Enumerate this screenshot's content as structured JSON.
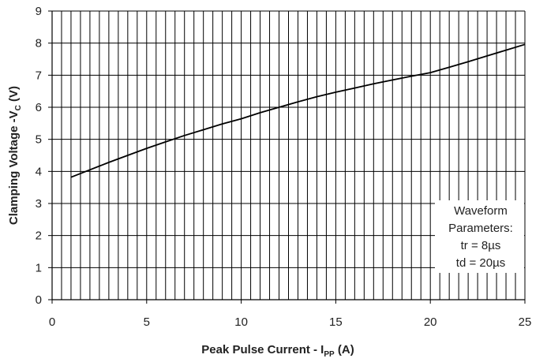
{
  "chart_data": {
    "type": "line",
    "title": "",
    "xlabel": {
      "main": "Peak Pulse Current - I",
      "sub": "PP",
      "suffix": " (A)"
    },
    "ylabel": {
      "main": "Clamping Voltage -V",
      "sub": "C",
      "suffix": " (V)"
    },
    "xlim": [
      0,
      25
    ],
    "ylim": [
      0,
      9
    ],
    "x_ticks": [
      "0",
      "5",
      "10",
      "15",
      "20",
      "25"
    ],
    "y_ticks": [
      "0",
      "1",
      "2",
      "3",
      "4",
      "5",
      "6",
      "7",
      "8",
      "9"
    ],
    "grid": true,
    "series": [
      {
        "color": "#000000",
        "x": [
          1,
          2,
          3,
          4,
          5,
          6,
          7,
          8,
          9,
          10,
          11,
          12,
          13,
          14,
          15,
          16,
          17,
          18,
          19,
          20,
          21,
          22,
          23,
          24,
          25
        ],
        "y": [
          3.82,
          4.05,
          4.28,
          4.5,
          4.72,
          4.92,
          5.12,
          5.3,
          5.48,
          5.64,
          5.83,
          6.0,
          6.17,
          6.33,
          6.47,
          6.6,
          6.73,
          6.85,
          6.97,
          7.08,
          7.25,
          7.42,
          7.6,
          7.78,
          7.96
        ]
      }
    ],
    "annotation": {
      "lines": [
        "Waveform",
        "Parameters:",
        "tr = 8µs",
        "td = 20µs"
      ]
    }
  }
}
